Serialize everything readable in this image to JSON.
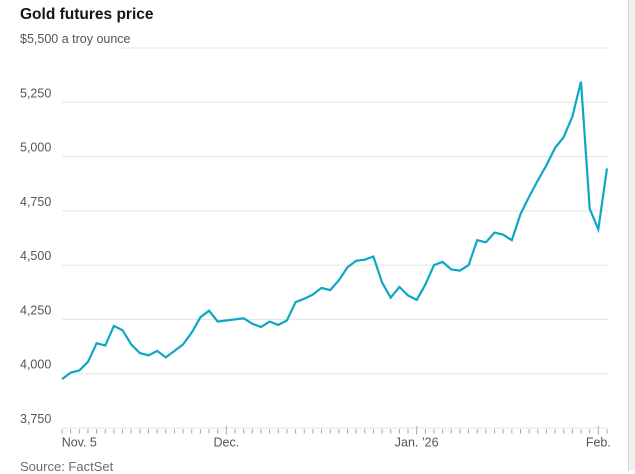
{
  "page": {
    "source": "Source: FactSet"
  },
  "chart_data": {
    "type": "line",
    "title": "Gold futures price",
    "series_name": "Gold futures price ($ a troy ounce)",
    "line_color": "#0da7c4",
    "grid": true,
    "legend": "none",
    "y_min": 3750,
    "y_max": 5500,
    "y_ticks": [
      {
        "value": 5500,
        "label": "$5,500 a troy ounce"
      },
      {
        "value": 5250,
        "label": "5,250"
      },
      {
        "value": 5000,
        "label": "5,000"
      },
      {
        "value": 4750,
        "label": "4,750"
      },
      {
        "value": 4500,
        "label": "4,500"
      },
      {
        "value": 4250,
        "label": "4,250"
      },
      {
        "value": 4000,
        "label": "4,000"
      },
      {
        "value": 3750,
        "label": "3,750"
      }
    ],
    "x_ticks": [
      {
        "label": "Nov. 5",
        "index": 2,
        "long": false
      },
      {
        "label": "Dec.",
        "index": 19,
        "long": true
      },
      {
        "label": "Jan. ’26",
        "index": 41,
        "long": true
      },
      {
        "label": "Feb.",
        "index": 62,
        "long": true
      }
    ],
    "values": [
      3975,
      4005,
      4015,
      4055,
      4140,
      4130,
      4220,
      4200,
      4135,
      4095,
      4085,
      4105,
      4075,
      4105,
      4135,
      4190,
      4260,
      4290,
      4240,
      4245,
      4250,
      4255,
      4230,
      4215,
      4240,
      4225,
      4245,
      4330,
      4345,
      4365,
      4395,
      4385,
      4430,
      4490,
      4520,
      4525,
      4540,
      4420,
      4350,
      4400,
      4360,
      4340,
      4410,
      4500,
      4515,
      4480,
      4475,
      4500,
      4615,
      4605,
      4650,
      4640,
      4615,
      4735,
      4815,
      4890,
      4960,
      5040,
      5090,
      5185,
      5345,
      4760,
      4665,
      4945
    ]
  }
}
